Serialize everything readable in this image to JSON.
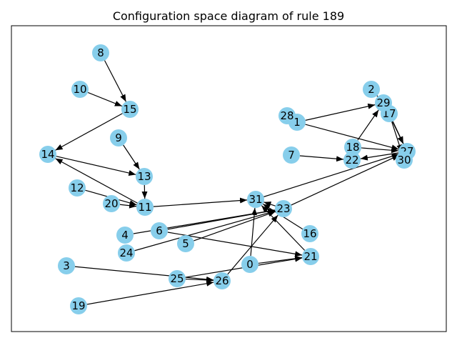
{
  "title": "Configuration space diagram of rule 189",
  "nodes": [
    {
      "id": "0"
    },
    {
      "id": "1"
    },
    {
      "id": "2"
    },
    {
      "id": "3"
    },
    {
      "id": "4"
    },
    {
      "id": "5"
    },
    {
      "id": "6"
    },
    {
      "id": "7"
    },
    {
      "id": "8"
    },
    {
      "id": "9"
    },
    {
      "id": "10"
    },
    {
      "id": "11"
    },
    {
      "id": "12"
    },
    {
      "id": "13"
    },
    {
      "id": "14"
    },
    {
      "id": "15"
    },
    {
      "id": "16"
    },
    {
      "id": "17"
    },
    {
      "id": "18"
    },
    {
      "id": "19"
    },
    {
      "id": "20"
    },
    {
      "id": "21"
    },
    {
      "id": "22"
    },
    {
      "id": "23"
    },
    {
      "id": "24"
    },
    {
      "id": "25"
    },
    {
      "id": "26"
    },
    {
      "id": "27"
    },
    {
      "id": "28"
    },
    {
      "id": "29"
    },
    {
      "id": "30"
    },
    {
      "id": "31"
    }
  ],
  "edges": [
    [
      "8",
      "15"
    ],
    [
      "10",
      "15"
    ],
    [
      "15",
      "14"
    ],
    [
      "14",
      "13"
    ],
    [
      "9",
      "13"
    ],
    [
      "13",
      "11"
    ],
    [
      "11",
      "14"
    ],
    [
      "12",
      "11"
    ],
    [
      "20",
      "11"
    ],
    [
      "11",
      "31"
    ],
    [
      "0",
      "31"
    ],
    [
      "0",
      "21"
    ],
    [
      "6",
      "21"
    ],
    [
      "6",
      "23"
    ],
    [
      "4",
      "23"
    ],
    [
      "24",
      "23"
    ],
    [
      "5",
      "23"
    ],
    [
      "16",
      "31"
    ],
    [
      "21",
      "31"
    ],
    [
      "23",
      "31"
    ],
    [
      "23",
      "27"
    ],
    [
      "31",
      "27"
    ],
    [
      "26",
      "23"
    ],
    [
      "3",
      "26"
    ],
    [
      "19",
      "26"
    ],
    [
      "25",
      "26"
    ],
    [
      "25",
      "21"
    ],
    [
      "1",
      "29"
    ],
    [
      "1",
      "27"
    ],
    [
      "28",
      "1"
    ],
    [
      "18",
      "29"
    ],
    [
      "18",
      "27"
    ],
    [
      "29",
      "27"
    ],
    [
      "17",
      "27"
    ],
    [
      "17",
      "30"
    ],
    [
      "30",
      "27"
    ],
    [
      "7",
      "22"
    ],
    [
      "27",
      "22"
    ],
    [
      "2",
      "29"
    ]
  ],
  "colors": {
    "node": "#87ceeb",
    "edge": "#000000"
  }
}
